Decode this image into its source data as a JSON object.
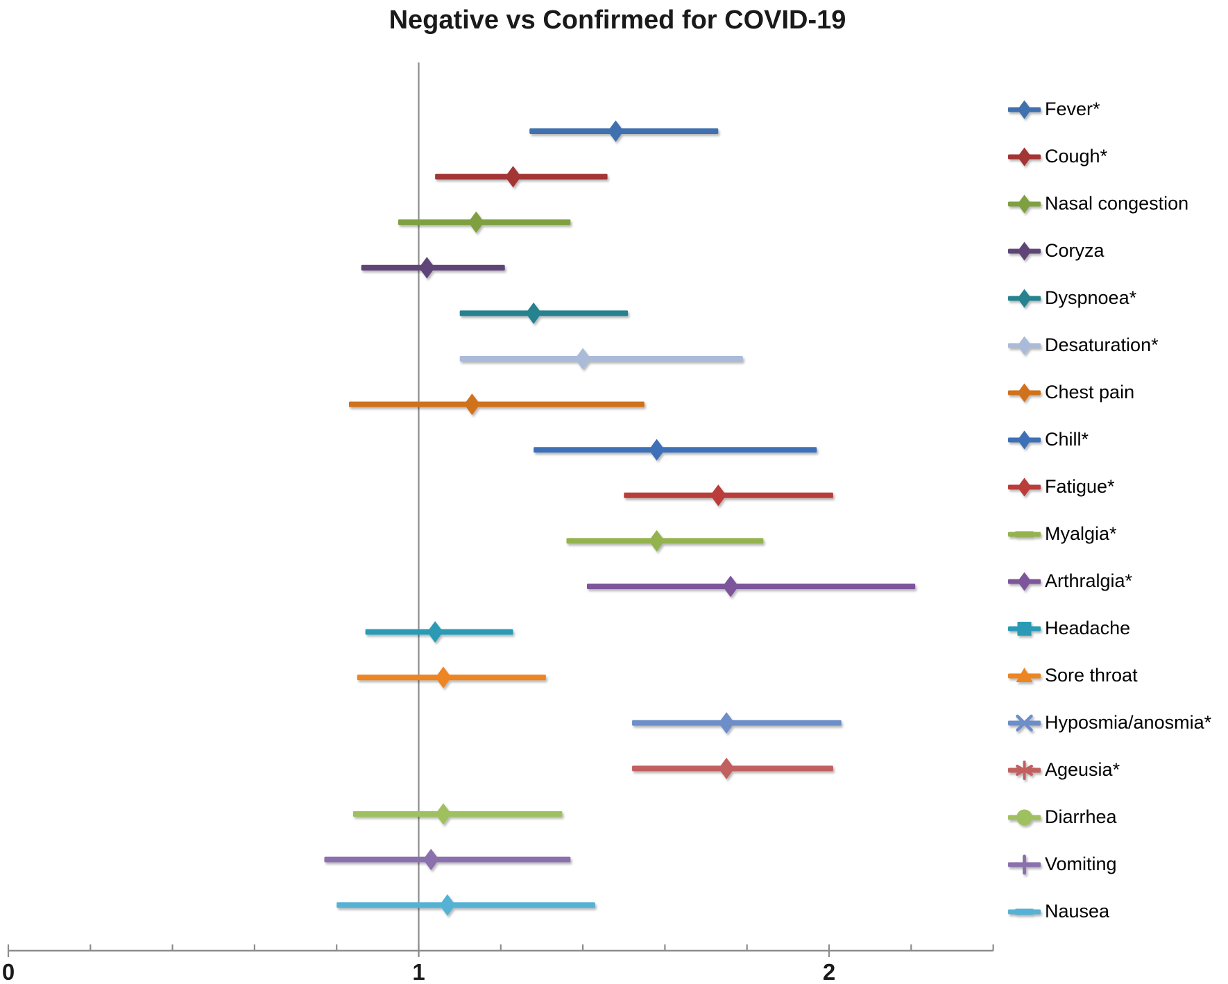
{
  "title": "Negative vs Confirmed for COVID-19",
  "colors": {
    "axis": "#8C8C8C",
    "reference_line": "#8C8C8C",
    "text": "#1A1A1A"
  },
  "chart_data": {
    "type": "scatter",
    "subtype": "forest-plot",
    "title": "Negative vs Confirmed for COVID-19",
    "plot_marker": "diamond",
    "legend_position": "right",
    "grid": false,
    "x_axis": {
      "min": 0,
      "max": 2.4,
      "minor_tick_interval": 0.2,
      "reference_line_x": 1,
      "tick_labels": [
        {
          "value": 0,
          "label": "0"
        },
        {
          "value": 1,
          "label": "1"
        },
        {
          "value": 2,
          "label": "2"
        }
      ]
    },
    "series": [
      {
        "name": "Fever*",
        "color": "#3F6FAE",
        "estimate": 1.48,
        "ci_low": 1.27,
        "ci_high": 1.73,
        "legend_marker": "diamond"
      },
      {
        "name": "Cough*",
        "color": "#A33535",
        "estimate": 1.23,
        "ci_low": 1.04,
        "ci_high": 1.46,
        "legend_marker": "diamond"
      },
      {
        "name": "Nasal congestion",
        "color": "#7FA03F",
        "estimate": 1.14,
        "ci_low": 0.95,
        "ci_high": 1.37,
        "legend_marker": "diamond"
      },
      {
        "name": "Coryza",
        "color": "#5F4577",
        "estimate": 1.02,
        "ci_low": 0.86,
        "ci_high": 1.21,
        "legend_marker": "diamond"
      },
      {
        "name": "Dyspnoea*",
        "color": "#27828F",
        "estimate": 1.28,
        "ci_low": 1.1,
        "ci_high": 1.51,
        "legend_marker": "diamond"
      },
      {
        "name": "Desaturation*",
        "color": "#A9BBD8",
        "estimate": 1.4,
        "ci_low": 1.1,
        "ci_high": 1.79,
        "legend_marker": "diamond"
      },
      {
        "name": "Chest pain",
        "color": "#D0711F",
        "estimate": 1.13,
        "ci_low": 0.83,
        "ci_high": 1.55,
        "legend_marker": "diamond"
      },
      {
        "name": "Chill*",
        "color": "#3E70B6",
        "estimate": 1.58,
        "ci_low": 1.28,
        "ci_high": 1.97,
        "legend_marker": "diamond"
      },
      {
        "name": "Fatigue*",
        "color": "#BA3C3B",
        "estimate": 1.73,
        "ci_low": 1.5,
        "ci_high": 2.01,
        "legend_marker": "diamond"
      },
      {
        "name": "Myalgia*",
        "color": "#94B350",
        "estimate": 1.58,
        "ci_low": 1.36,
        "ci_high": 1.84,
        "legend_marker": "dash"
      },
      {
        "name": "Arthralgia*",
        "color": "#7B559B",
        "estimate": 1.76,
        "ci_low": 1.41,
        "ci_high": 2.21,
        "legend_marker": "diamond"
      },
      {
        "name": "Headache",
        "color": "#2B9AB5",
        "estimate": 1.04,
        "ci_low": 0.87,
        "ci_high": 1.23,
        "legend_marker": "square"
      },
      {
        "name": "Sore throat",
        "color": "#EC8522",
        "estimate": 1.06,
        "ci_low": 0.85,
        "ci_high": 1.31,
        "legend_marker": "triangle"
      },
      {
        "name": "Hyposmia/anosmia*",
        "color": "#6D8EC8",
        "estimate": 1.75,
        "ci_low": 1.52,
        "ci_high": 2.03,
        "legend_marker": "x"
      },
      {
        "name": "Ageusia*",
        "color": "#C25F5E",
        "estimate": 1.75,
        "ci_low": 1.52,
        "ci_high": 2.01,
        "legend_marker": "asterisk"
      },
      {
        "name": "Diarrhea",
        "color": "#9FC05E",
        "estimate": 1.06,
        "ci_low": 0.84,
        "ci_high": 1.35,
        "legend_marker": "circle"
      },
      {
        "name": "Vomiting",
        "color": "#8B6FAE",
        "estimate": 1.03,
        "ci_low": 0.77,
        "ci_high": 1.37,
        "legend_marker": "plus"
      },
      {
        "name": "Nausea",
        "color": "#55B2D4",
        "estimate": 1.07,
        "ci_low": 0.8,
        "ci_high": 1.43,
        "legend_marker": "dash"
      }
    ]
  }
}
